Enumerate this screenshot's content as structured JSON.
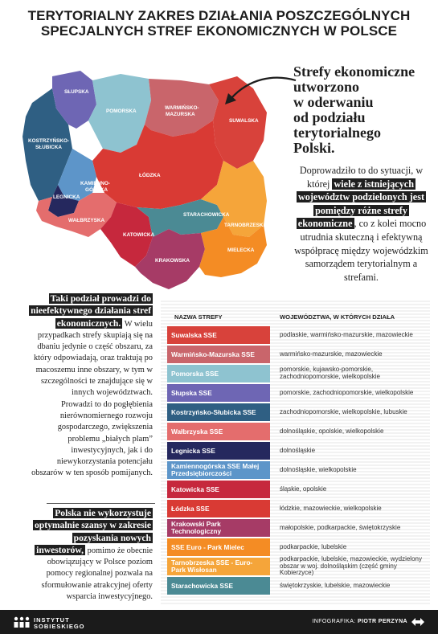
{
  "title": {
    "line1": "TERYTORIALNY ZAKRES DZIAŁANIA POSZCZEGÓLNYCH",
    "line2": "SPECJALNYCH STREF EKONOMICZNYCH W POLSCE"
  },
  "map": {
    "labels": {
      "slupska": "SŁUPSKA",
      "pomorska": "POMORSKA",
      "warminsko1": "WARMIŃSKO-",
      "warminsko2": "MAZURSKA",
      "suwalska": "SUWALSKA",
      "kostrzynsko1": "KOSTRZYŃSKO-",
      "kostrzynsko2": "SŁUBICKA",
      "lodzka": "ŁÓDZKA",
      "kamiennogorska1": "KAMIENNO-",
      "kamiennogorska2": "GÓRSKA",
      "legnicka": "LEGNICKA",
      "walbrzyska": "WAŁBRZYSKA",
      "starachowicka": "STARACHOWICKA",
      "tarnobrzeska": "TARNOBRZESKA",
      "katowicka": "KATOWICKA",
      "mielecka": "MIELECKA",
      "krakowska": "KRAKOWSKA"
    }
  },
  "headline": {
    "l1": "Strefy ekonomiczne",
    "l2": "utworzono",
    "l3": "w oderwaniu",
    "l4": "od podziału",
    "l5": "terytorialnego",
    "l6": "Polski."
  },
  "right_paragraph": {
    "part1": "Doprowadziło to do sytuacji, w której",
    "highlight": "wiele z istniejących województw podzielonych jest pomiędzy różne strefy ekonomiczne",
    "part2": ", co z kolei mocno utrudnia skuteczną i efektywną współpracę między wojewódzkim samorządem terytorialnym a strefami."
  },
  "left_paragraph_1": {
    "highlight": "Taki podział prowadzi do nieefektywnego działania stref ekonomicznych.",
    "text": " W wielu przypadkach strefy skupiają się na dbaniu jedynie o część obszaru, za który odpowiadają, oraz traktują po macoszemu inne obszary, w tym w szczególności te znajdujące się w innych województwach.",
    "text2": "Prowadzi to do pogłębienia nierównomiernego rozwoju gospodarczego, zwiększenia problemu „białych plam” inwestycyjnych, jak i do niewykorzystania potencjału obszarów w ten sposób pomijanych."
  },
  "left_paragraph_2": {
    "highlight": "Polska nie wykorzystuje optymalnie szansy w zakresie pozyskania nowych inwestorów,",
    "text": " pomimo że obecnie obowiązujący w Polsce poziom pomocy regionalnej pozwala na sformułowanie atrakcyjnej oferty wsparcia inwestycyjnego."
  },
  "table": {
    "header_zone": "NAZWA STREFY",
    "header_voiv": "WOJEWÓDZTWA, W KTÓRYCH DZIAŁA",
    "rows": [
      {
        "name": "Suwalska SSE",
        "voiv": "podlaskie, warmińsko-mazurskie, mazowieckie",
        "color": "#d8423b"
      },
      {
        "name": "Warmińsko-Mazurska SSE",
        "voiv": "warmińsko-mazurskie, mazowieckie",
        "color": "#c9656b"
      },
      {
        "name": "Pomorska SSE",
        "voiv": "pomorskie, kujawsko-pomorskie, zachodniopomorskie, wielkopolskie",
        "color": "#8ec3d0"
      },
      {
        "name": "Słupska SSE",
        "voiv": "pomorskie, zachodniopomorskie, wielkopolskie",
        "color": "#6e66b4"
      },
      {
        "name": "Kostrzyńsko-Słubicka SSE",
        "voiv": "zachodniopomorskie, wielkopolskie, lubuskie",
        "color": "#2f5f83"
      },
      {
        "name": "Wałbrzyska SSE",
        "voiv": "dolnośląskie, opolskie, wielkopolskie",
        "color": "#e46d6d"
      },
      {
        "name": "Legnicka SSE",
        "voiv": "dolnośląskie",
        "color": "#25285e"
      },
      {
        "name": "Kamiennogórska SSE Małej Przedsiębiorczości",
        "voiv": "dolnośląskie, wielkopolskie",
        "color": "#5d95c9"
      },
      {
        "name": "Katowicka SSE",
        "voiv": "śląskie, opolskie",
        "color": "#c6283d"
      },
      {
        "name": "Łódzka SSE",
        "voiv": "łódzkie, mazowieckie, wielkopolskie",
        "color": "#d93a34"
      },
      {
        "name": "Krakowski Park Technologiczny",
        "voiv": "małopolskie, podkarpackie, świętokrzyskie",
        "color": "#a63b66"
      },
      {
        "name": "SSE Euro - Park Mielec",
        "voiv": "podkarpackie, lubelskie",
        "color": "#f48c24"
      },
      {
        "name": "Tarnobrzeska SSE - Euro-Park Wisłosan",
        "voiv": "podkarpackie, lubelskie, mazowieckie, wydzielony obszar w woj. dolnośląskim (część gminy Kobierzyce)",
        "color": "#f5a53a"
      },
      {
        "name": "Starachowicka SSE",
        "voiv": "świętokrzyskie, lubelskie, mazowieckie",
        "color": "#4b8a94"
      }
    ]
  },
  "footer": {
    "logo_line1": "INSTYTUT",
    "logo_line2": "SOBIESKIEGO",
    "credit_prefix": "INFOGRAFIKA:",
    "credit_name": "PIOTR PERZYNA"
  }
}
